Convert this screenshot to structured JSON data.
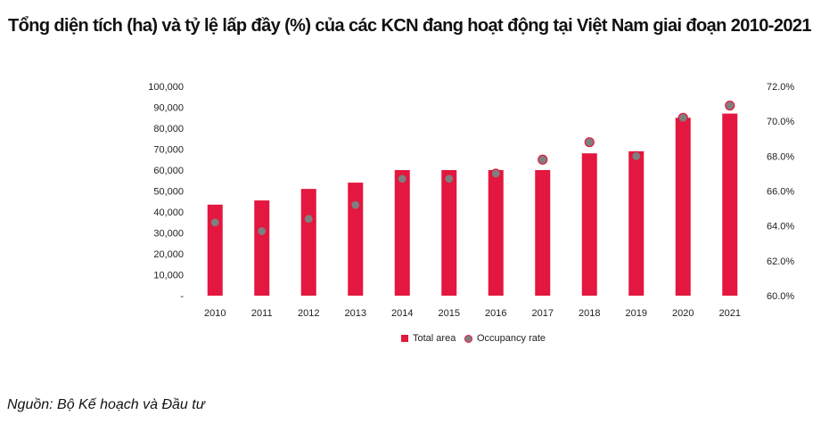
{
  "title": "Tổng diện tích (ha) và tỷ lệ lấp đầy (%) của các KCN đang hoạt động tại Việt Nam giai đoạn 2010-2021",
  "source": "Nguồn: Bộ Kế hoạch và Đầu tư",
  "legend": {
    "total_area": "Total area",
    "occupancy": "Occupancy rate"
  },
  "colors": {
    "bar": "#e3173f",
    "dot_fill": "#7f7f7f",
    "dot_stroke": "#e3173f"
  },
  "chart_data": {
    "type": "bar",
    "title": "Tổng diện tích (ha) và tỷ lệ lấp đầy (%) của các KCN đang hoạt động tại Việt Nam giai đoạn 2010-2021",
    "categories": [
      "2010",
      "2011",
      "2012",
      "2013",
      "2014",
      "2015",
      "2016",
      "2017",
      "2018",
      "2019",
      "2020",
      "2021"
    ],
    "series": [
      {
        "name": "Total area",
        "type": "bar",
        "axis": "left",
        "values": [
          43500,
          45500,
          51000,
          54000,
          60000,
          60000,
          60000,
          60000,
          68000,
          69000,
          85000,
          87000
        ]
      },
      {
        "name": "Occupancy rate",
        "type": "scatter",
        "axis": "right",
        "values": [
          64.2,
          63.7,
          64.4,
          65.2,
          66.7,
          66.7,
          67.0,
          67.8,
          68.8,
          68.0,
          70.2,
          70.9
        ]
      }
    ],
    "y_left": {
      "min": 0,
      "max": 100000,
      "step": 10000,
      "tick_labels": [
        "-",
        "10,000",
        "20,000",
        "30,000",
        "40,000",
        "50,000",
        "60,000",
        "70,000",
        "80,000",
        "90,000",
        "100,000"
      ]
    },
    "y_right": {
      "min": 60,
      "max": 72,
      "step": 2,
      "tick_labels": [
        "60.0%",
        "62.0%",
        "64.0%",
        "66.0%",
        "68.0%",
        "70.0%",
        "72.0%"
      ]
    },
    "grid": false,
    "legend_position": "bottom"
  }
}
